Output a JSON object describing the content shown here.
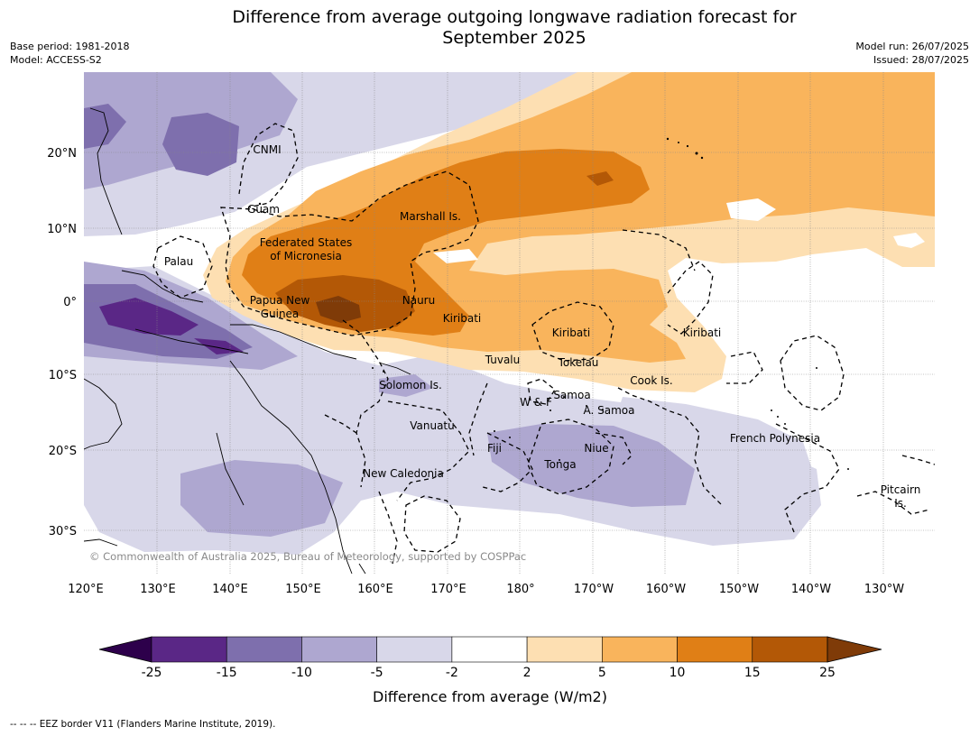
{
  "title": {
    "line1": "Difference from average outgoing longwave radiation forecast for",
    "line2": "September 2025"
  },
  "meta": {
    "base_period": "Base period: 1981-2018",
    "model": "Model: ACCESS-S2",
    "model_run": "Model run: 26/07/2025",
    "issued": "Issued: 28/07/2025"
  },
  "map": {
    "lon_labels": [
      "120°E",
      "130°E",
      "140°E",
      "150°E",
      "160°E",
      "170°E",
      "180°",
      "170°W",
      "160°W",
      "150°W",
      "140°W",
      "130°W"
    ],
    "lat_labels": [
      "20°N",
      "10°N",
      "0°",
      "10°S",
      "20°S",
      "30°S"
    ],
    "region_labels": {
      "cnmi": "CNMI",
      "guam": "Guam",
      "marshall": "Marshall Is.",
      "fsm_1": "Federated States",
      "fsm_2": "of Micronesia",
      "palau": "Palau",
      "png_1": "Papua New",
      "png_2": "Guinea",
      "nauru": "Nauru",
      "kiribati_w": "Kiribati",
      "kiribati_c": "Kiribati",
      "kiribati_e": "Kiribati",
      "tuvalu": "Tuvalu",
      "tokelau": "Tokelau",
      "cook": "Cook Is.",
      "solomon": "Solomon Is.",
      "wf": "W & F",
      "samoa": "Samoa",
      "asamoa": "A. Samoa",
      "vanuatu": "Vanuatu",
      "fiji": "Fiji",
      "niue": "Niue",
      "tonga": "Tonga",
      "frpoly": "French Polynesia",
      "newcal": "New Caledonia",
      "pitcairn_1": "Pitcairn",
      "pitcairn_2": "Is."
    },
    "copyright": "© Commonwealth of Australia 2025, Bureau of Meteorology, supported by COSPPac"
  },
  "colorbar": {
    "ticks": [
      "-25",
      "-15",
      "-10",
      "-5",
      "-2",
      "2",
      "5",
      "10",
      "15",
      "25"
    ],
    "colors": [
      "#5a2786",
      "#7e6fad",
      "#aea7d0",
      "#d8d7e9",
      "#ffffff",
      "#fddfb2",
      "#f9b45c",
      "#e07f16",
      "#b35806"
    ],
    "under_color": "#2d004b",
    "over_color": "#7f3b08",
    "label": "Difference from average (W/m2)"
  },
  "footnote": "--  --  -- EEZ border V11 (Flanders Marine Institute, 2019)."
}
